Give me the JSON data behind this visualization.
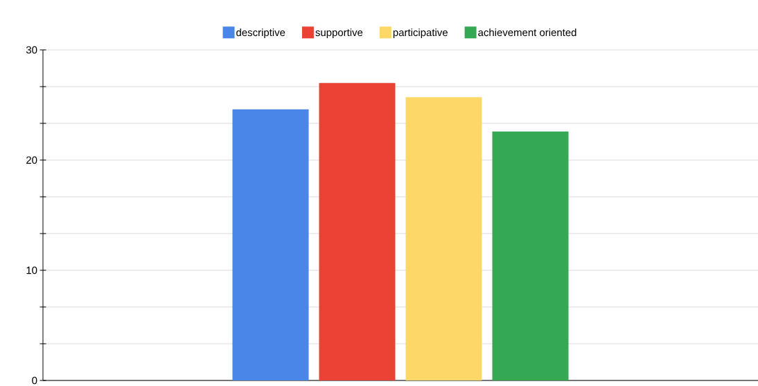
{
  "chart_data": {
    "type": "bar",
    "categories": [
      null
    ],
    "series": [
      {
        "name": "descriptive",
        "color": "#4a86e8",
        "values": [
          24.6
        ]
      },
      {
        "name": "supportive",
        "color": "#ea4335",
        "values": [
          27.0
        ]
      },
      {
        "name": "participative",
        "color": "#fdd868",
        "values": [
          25.7
        ]
      },
      {
        "name": "achievement oriented",
        "color": "#34a853",
        "values": [
          22.6
        ]
      }
    ],
    "ylim": [
      0,
      30
    ],
    "yticks": [
      0,
      {
        "value": 3.333,
        "label": null
      },
      {
        "value": 6.667,
        "label": null
      },
      10,
      {
        "value": 13.333,
        "label": null
      },
      {
        "value": 16.667,
        "label": null
      },
      20,
      {
        "value": 23.333,
        "label": null
      },
      {
        "value": 26.667,
        "label": null
      },
      30
    ],
    "grid": "y",
    "legend": "top"
  }
}
